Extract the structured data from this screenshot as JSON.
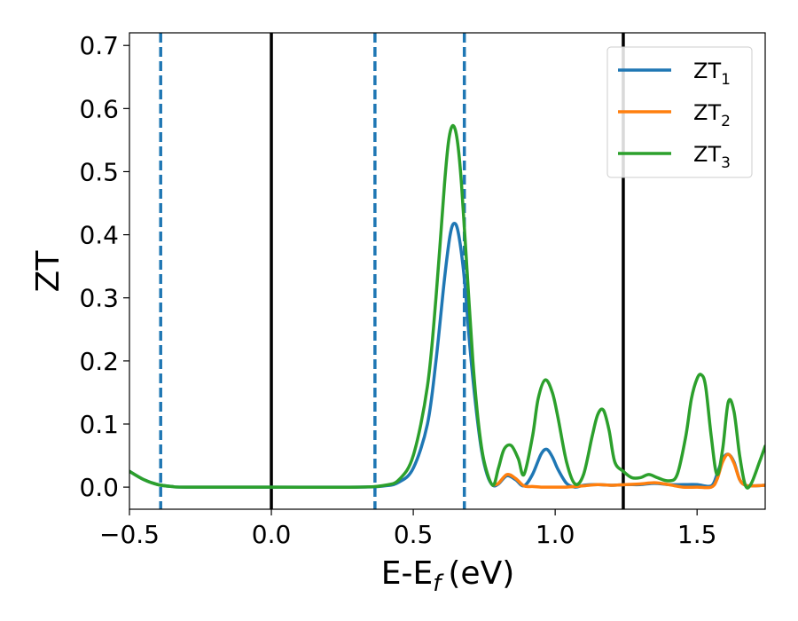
{
  "chart_data": {
    "type": "line",
    "xlabel": "E-E",
    "xlabel_sub": "f",
    "xlabel_unit": "(eV)",
    "ylabel": "ZT",
    "xlim": [
      -0.5,
      1.74
    ],
    "ylim": [
      -0.035,
      0.72
    ],
    "x_ticks": [
      -0.5,
      0.0,
      0.5,
      1.0,
      1.5
    ],
    "x_tick_labels": [
      "−0.5",
      "0.0",
      "0.5",
      "1.0",
      "1.5"
    ],
    "y_ticks": [
      0.0,
      0.1,
      0.2,
      0.3,
      0.4,
      0.5,
      0.6,
      0.7
    ],
    "y_tick_labels": [
      "0.0",
      "0.1",
      "0.2",
      "0.3",
      "0.4",
      "0.5",
      "0.6",
      "0.7"
    ],
    "grid": false,
    "legend_position": "top-right",
    "vlines_solid": [
      0.0,
      1.24
    ],
    "vlines_dashed": [
      -0.39,
      0.365,
      0.68
    ],
    "vline_solid_color": "#000000",
    "vline_dashed_color": "#1f77b4",
    "series": [
      {
        "name": "ZT",
        "name_sub": "1",
        "color": "#1f77b4",
        "x": [
          -0.5,
          -0.45,
          -0.4,
          -0.35,
          -0.3,
          0.0,
          0.3,
          0.4,
          0.45,
          0.5,
          0.55,
          0.58,
          0.61,
          0.63,
          0.645,
          0.66,
          0.68,
          0.7,
          0.72,
          0.74,
          0.76,
          0.78,
          0.8,
          0.83,
          0.86,
          0.89,
          0.92,
          0.95,
          0.97,
          0.99,
          1.01,
          1.04,
          1.07,
          1.1,
          1.15,
          1.2,
          1.25,
          1.3,
          1.35,
          1.4,
          1.45,
          1.5,
          1.55,
          1.57,
          1.59,
          1.61,
          1.63,
          1.65,
          1.67,
          1.7,
          1.74
        ],
        "y": [
          0.025,
          0.012,
          0.004,
          0.001,
          0.0,
          0.0,
          0.0,
          0.002,
          0.008,
          0.03,
          0.1,
          0.2,
          0.33,
          0.4,
          0.418,
          0.4,
          0.33,
          0.22,
          0.13,
          0.06,
          0.02,
          0.003,
          0.005,
          0.018,
          0.012,
          0.002,
          0.02,
          0.052,
          0.06,
          0.048,
          0.028,
          0.006,
          0.0,
          0.003,
          0.004,
          0.003,
          0.004,
          0.004,
          0.006,
          0.004,
          0.004,
          0.004,
          0.002,
          0.02,
          0.045,
          0.052,
          0.04,
          0.012,
          0.003,
          0.002,
          0.003
        ]
      },
      {
        "name": "ZT",
        "name_sub": "2",
        "color": "#ff7f0e",
        "x": [
          0.78,
          0.8,
          0.83,
          0.86,
          0.89,
          0.92,
          0.95,
          0.97,
          0.99,
          1.01,
          1.04,
          1.07,
          1.1,
          1.15,
          1.2,
          1.25,
          1.3,
          1.35,
          1.4,
          1.45,
          1.5,
          1.55,
          1.57,
          1.59,
          1.61,
          1.63,
          1.65,
          1.67,
          1.7,
          1.74
        ],
        "y": [
          0.003,
          0.006,
          0.02,
          0.014,
          0.002,
          0.001,
          0.0,
          0.0,
          0.0,
          0.0,
          0.0,
          0.001,
          0.002,
          0.004,
          0.003,
          0.004,
          0.005,
          0.007,
          0.004,
          0.0,
          0.0,
          0.0,
          0.012,
          0.04,
          0.052,
          0.038,
          0.012,
          0.003,
          0.002,
          0.003
        ]
      },
      {
        "name": "ZT",
        "name_sub": "3",
        "color": "#2ca02c",
        "x": [
          -0.5,
          -0.45,
          -0.4,
          -0.35,
          -0.3,
          0.0,
          0.3,
          0.4,
          0.45,
          0.5,
          0.55,
          0.58,
          0.61,
          0.625,
          0.64,
          0.655,
          0.67,
          0.69,
          0.71,
          0.73,
          0.75,
          0.78,
          0.8,
          0.82,
          0.845,
          0.87,
          0.89,
          0.92,
          0.94,
          0.965,
          0.99,
          1.01,
          1.04,
          1.07,
          1.1,
          1.13,
          1.15,
          1.17,
          1.19,
          1.21,
          1.24,
          1.27,
          1.3,
          1.33,
          1.36,
          1.4,
          1.43,
          1.46,
          1.48,
          1.5,
          1.515,
          1.53,
          1.55,
          1.57,
          1.59,
          1.61,
          1.63,
          1.65,
          1.67,
          1.69,
          1.72,
          1.74
        ],
        "y": [
          0.025,
          0.012,
          0.004,
          0.001,
          0.0,
          0.0,
          0.0,
          0.003,
          0.012,
          0.05,
          0.16,
          0.3,
          0.48,
          0.55,
          0.573,
          0.55,
          0.48,
          0.34,
          0.2,
          0.1,
          0.04,
          0.003,
          0.03,
          0.06,
          0.066,
          0.045,
          0.02,
          0.08,
          0.14,
          0.17,
          0.15,
          0.11,
          0.04,
          0.005,
          0.02,
          0.08,
          0.115,
          0.122,
          0.09,
          0.04,
          0.025,
          0.015,
          0.015,
          0.02,
          0.015,
          0.01,
          0.02,
          0.08,
          0.14,
          0.172,
          0.178,
          0.16,
          0.08,
          0.02,
          0.06,
          0.135,
          0.12,
          0.05,
          0.003,
          0.005,
          0.04,
          0.065
        ]
      }
    ]
  }
}
